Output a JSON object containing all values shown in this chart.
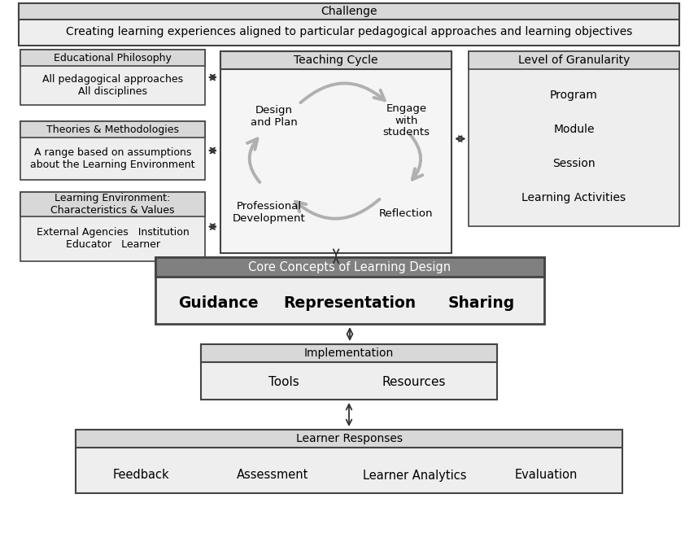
{
  "bg_color": "#ffffff",
  "border_color": "#444444",
  "header_fill": "#aaaaaa",
  "box_fill": "#f2f2f2",
  "tc_fill": "#f8f8f8",
  "core_header_fill": "#808080",
  "core_header_text": "#ffffff",
  "challenge_fill": "#d8d8d8",
  "challenge_header": "Challenge",
  "challenge_subtitle": "Creating learning experiences aligned to particular pedagogical approaches and learning objectives",
  "left_boxes": [
    {
      "header": "Educational Philosophy",
      "body": "All pedagogical approaches\nAll disciplines",
      "header_lines": 1
    },
    {
      "header": "Theories & Methodologies",
      "body": "A range based on assumptions\nabout the Learning Environment",
      "header_lines": 1
    },
    {
      "header": "Learning Environment:\nCharacteristics & Values",
      "body": "External Agencies   Institution\nEducator   Learner",
      "header_lines": 2
    }
  ],
  "tc_header": "Teaching Cycle",
  "tc_labels": [
    {
      "text": "Design\nand Plan",
      "pos": "top-left"
    },
    {
      "text": "Engage\nwith\nstudents",
      "pos": "top-right"
    },
    {
      "text": "Reflection",
      "pos": "bottom-right"
    },
    {
      "text": "Professional\nDevelopment",
      "pos": "bottom-left"
    }
  ],
  "rg_header": "Level of Granularity",
  "rg_items": [
    "Program",
    "Module",
    "Session",
    "Learning Activities"
  ],
  "core_header": "Core Concepts of Learning Design",
  "core_items": [
    "Guidance",
    "Representation",
    "Sharing"
  ],
  "impl_header": "Implementation",
  "impl_items": [
    "Tools",
    "Resources"
  ],
  "lr_header": "Learner Responses",
  "lr_items": [
    "Feedback",
    "Assessment",
    "Learner Analytics",
    "Evaluation"
  ],
  "gray_arrow": "#b0b0b0",
  "da_color": "#333333"
}
